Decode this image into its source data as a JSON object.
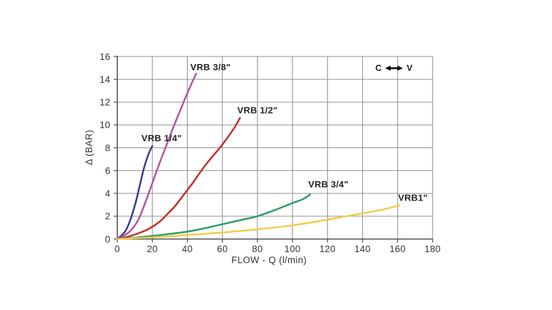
{
  "annotation": {
    "left": "C",
    "right": "V"
  },
  "colors": {
    "grid": "#919194",
    "axis": "#515154",
    "tick_text": "#333336",
    "series_label_text": "#242426",
    "arrow": "#111111",
    "background": "#ffffff"
  },
  "chart_data": {
    "type": "line",
    "title": "",
    "xlabel": "FLOW - Q (l/min)",
    "ylabel": "Δ (BAR)",
    "xlim": [
      0,
      180
    ],
    "ylim": [
      0,
      16
    ],
    "x_ticks": [
      0,
      20,
      40,
      60,
      80,
      100,
      120,
      140,
      160,
      180
    ],
    "y_ticks": [
      0,
      2,
      4,
      6,
      8,
      10,
      12,
      14,
      16
    ],
    "grid": true,
    "legend_position": "inline-labels",
    "annotation_text": "C ↔ V",
    "series": [
      {
        "name": "VRB 1/4\"",
        "color": "#3c3d99",
        "label_pos": {
          "x": 13.8,
          "y": 8.85
        },
        "points": [
          [
            0,
            0
          ],
          [
            3,
            0.4
          ],
          [
            5,
            0.8
          ],
          [
            7,
            1.5
          ],
          [
            9,
            2.4
          ],
          [
            11,
            3.5
          ],
          [
            13,
            4.8
          ],
          [
            15,
            6.1
          ],
          [
            17,
            7.1
          ],
          [
            18.5,
            7.7
          ],
          [
            20,
            8.15
          ]
        ]
      },
      {
        "name": "VRB 3/8\"",
        "color": "#b0599e",
        "label_pos": {
          "x": 41.7,
          "y": 15.05
        },
        "points": [
          [
            0,
            0
          ],
          [
            4,
            0.3
          ],
          [
            8,
            0.8
          ],
          [
            12,
            1.7
          ],
          [
            16,
            3.2
          ],
          [
            20,
            4.9
          ],
          [
            24,
            6.6
          ],
          [
            28,
            8.2
          ],
          [
            32,
            9.8
          ],
          [
            36,
            11.3
          ],
          [
            40,
            12.8
          ],
          [
            45,
            14.5
          ]
        ]
      },
      {
        "name": "VRB 1/2\"",
        "color": "#c23328",
        "label_pos": {
          "x": 68.5,
          "y": 11.3
        },
        "points": [
          [
            0,
            0
          ],
          [
            6,
            0.2
          ],
          [
            12,
            0.5
          ],
          [
            18,
            0.9
          ],
          [
            24,
            1.5
          ],
          [
            28,
            2.1
          ],
          [
            33,
            2.9
          ],
          [
            38,
            3.9
          ],
          [
            43,
            4.9
          ],
          [
            48,
            6.0
          ],
          [
            53,
            7.0
          ],
          [
            58,
            7.9
          ],
          [
            63,
            8.9
          ],
          [
            67,
            9.8
          ],
          [
            70,
            10.6
          ]
        ]
      },
      {
        "name": "VRB 3/4\"",
        "color": "#2f9e68",
        "label_pos": {
          "x": 109.0,
          "y": 4.8
        },
        "points": [
          [
            0,
            0
          ],
          [
            10,
            0.12
          ],
          [
            20,
            0.28
          ],
          [
            30,
            0.45
          ],
          [
            40,
            0.65
          ],
          [
            50,
            0.95
          ],
          [
            60,
            1.3
          ],
          [
            70,
            1.65
          ],
          [
            80,
            2.0
          ],
          [
            90,
            2.55
          ],
          [
            100,
            3.15
          ],
          [
            106,
            3.5
          ],
          [
            110,
            3.9
          ]
        ]
      },
      {
        "name": "VRB1\"",
        "color": "#f2cd4a",
        "label_pos": {
          "x": 160.3,
          "y": 3.62
        },
        "points": [
          [
            0,
            0
          ],
          [
            20,
            0.15
          ],
          [
            40,
            0.35
          ],
          [
            60,
            0.58
          ],
          [
            80,
            0.85
          ],
          [
            100,
            1.2
          ],
          [
            120,
            1.7
          ],
          [
            140,
            2.25
          ],
          [
            152,
            2.6
          ],
          [
            161,
            2.95
          ]
        ]
      }
    ]
  }
}
